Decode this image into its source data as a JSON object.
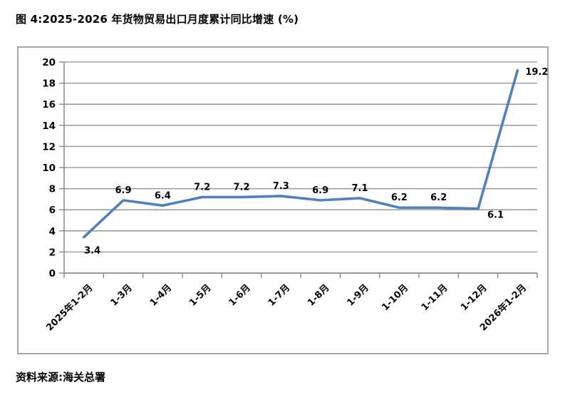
{
  "page": {
    "title": "图 4:2025-2026 年货物贸易出口月度累计同比增速 (%)",
    "source": "资料来源:海关总署"
  },
  "chart_data": {
    "type": "line",
    "title": "2025-2026 年货物贸易出口月度累计同比增速 (%)",
    "categories": [
      "2025年1-2月",
      "1-3月",
      "1-4月",
      "1-5月",
      "1-6月",
      "1-7月",
      "1-8月",
      "1-9月",
      "1-10月",
      "1-11月",
      "1-12月",
      "2026年1-2月"
    ],
    "values": [
      3.4,
      6.9,
      6.4,
      7.2,
      7.2,
      7.3,
      6.9,
      7.1,
      6.2,
      6.2,
      6.1,
      19.2
    ],
    "data_labels": [
      "3.4",
      "6.9",
      "6.4",
      "7.2",
      "7.2",
      "7.3",
      "6.9",
      "7.1",
      "6.2",
      "6.2",
      "6.1",
      "19.2"
    ],
    "label_placements": [
      "below",
      "above",
      "above",
      "above",
      "above",
      "above",
      "above",
      "above",
      "above",
      "above",
      "right-below",
      "right"
    ],
    "xlabel": "",
    "ylabel": "",
    "ylim": [
      0,
      20
    ],
    "ytick_step": 2,
    "grid": true,
    "legend": "none",
    "line_color": "#4f81bd",
    "grid_color": "#8e8e8e",
    "axis_color": "#808080",
    "text_color": "#000000"
  }
}
